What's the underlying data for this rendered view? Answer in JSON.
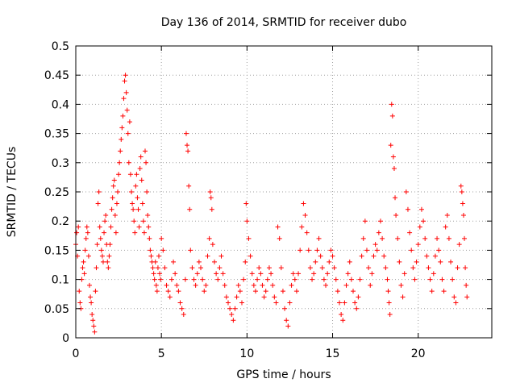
{
  "chart_data": {
    "type": "scatter",
    "title": "Day 136 of 2014, SRMTID for receiver dubo",
    "xlabel": "GPS time / hours",
    "ylabel": "SRMTID / TECUs",
    "xlim": [
      0,
      24.3
    ],
    "ylim": [
      0,
      0.5
    ],
    "xticks": [
      0,
      5,
      10,
      15,
      20
    ],
    "xtick_labels": [
      "0",
      "5",
      "10",
      "15",
      "20"
    ],
    "yticks": [
      0,
      0.05,
      0.1,
      0.15,
      0.2,
      0.25,
      0.3,
      0.35,
      0.4,
      0.45,
      0.5
    ],
    "ytick_labels": [
      "0",
      "0.05",
      "0.1",
      "0.15",
      "0.2",
      "0.25",
      "0.3",
      "0.35",
      "0.4",
      "0.45",
      "0.5"
    ],
    "grid": true,
    "marker": "plus",
    "marker_color": "#ff0000",
    "series": [
      {
        "name": "SRMTID",
        "points": [
          [
            0.0,
            0.16
          ],
          [
            0.05,
            0.18
          ],
          [
            0.1,
            0.14
          ],
          [
            0.15,
            0.19
          ],
          [
            0.2,
            0.08
          ],
          [
            0.25,
            0.06
          ],
          [
            0.3,
            0.05
          ],
          [
            0.35,
            0.1
          ],
          [
            0.4,
            0.12
          ],
          [
            0.45,
            0.13
          ],
          [
            0.5,
            0.11
          ],
          [
            0.55,
            0.15
          ],
          [
            0.6,
            0.17
          ],
          [
            0.65,
            0.19
          ],
          [
            0.7,
            0.18
          ],
          [
            0.75,
            0.14
          ],
          [
            0.8,
            0.09
          ],
          [
            0.85,
            0.07
          ],
          [
            0.9,
            0.06
          ],
          [
            0.95,
            0.04
          ],
          [
            1.0,
            0.03
          ],
          [
            1.05,
            0.02
          ],
          [
            1.1,
            0.01
          ],
          [
            1.15,
            0.08
          ],
          [
            1.2,
            0.12
          ],
          [
            1.25,
            0.16
          ],
          [
            1.3,
            0.23
          ],
          [
            1.35,
            0.25
          ],
          [
            1.4,
            0.19
          ],
          [
            1.45,
            0.17
          ],
          [
            1.5,
            0.15
          ],
          [
            1.55,
            0.14
          ],
          [
            1.6,
            0.13
          ],
          [
            1.65,
            0.18
          ],
          [
            1.7,
            0.2
          ],
          [
            1.75,
            0.21
          ],
          [
            1.8,
            0.16
          ],
          [
            1.85,
            0.13
          ],
          [
            1.9,
            0.12
          ],
          [
            1.95,
            0.14
          ],
          [
            2.0,
            0.16
          ],
          [
            2.05,
            0.19
          ],
          [
            2.1,
            0.22
          ],
          [
            2.15,
            0.24
          ],
          [
            2.2,
            0.26
          ],
          [
            2.25,
            0.27
          ],
          [
            2.3,
            0.21
          ],
          [
            2.35,
            0.18
          ],
          [
            2.4,
            0.23
          ],
          [
            2.45,
            0.25
          ],
          [
            2.5,
            0.28
          ],
          [
            2.55,
            0.3
          ],
          [
            2.6,
            0.32
          ],
          [
            2.65,
            0.34
          ],
          [
            2.7,
            0.36
          ],
          [
            2.75,
            0.38
          ],
          [
            2.8,
            0.41
          ],
          [
            2.85,
            0.44
          ],
          [
            2.9,
            0.45
          ],
          [
            2.95,
            0.42
          ],
          [
            3.0,
            0.39
          ],
          [
            3.05,
            0.35
          ],
          [
            3.1,
            0.3
          ],
          [
            3.15,
            0.37
          ],
          [
            3.2,
            0.28
          ],
          [
            3.25,
            0.25
          ],
          [
            3.3,
            0.23
          ],
          [
            3.35,
            0.22
          ],
          [
            3.4,
            0.2
          ],
          [
            3.45,
            0.18
          ],
          [
            3.5,
            0.26
          ],
          [
            3.55,
            0.28
          ],
          [
            3.6,
            0.24
          ],
          [
            3.65,
            0.22
          ],
          [
            3.7,
            0.19
          ],
          [
            3.75,
            0.29
          ],
          [
            3.8,
            0.31
          ],
          [
            3.85,
            0.27
          ],
          [
            3.9,
            0.23
          ],
          [
            3.95,
            0.2
          ],
          [
            4.0,
            0.18
          ],
          [
            4.05,
            0.32
          ],
          [
            4.1,
            0.3
          ],
          [
            4.15,
            0.25
          ],
          [
            4.2,
            0.21
          ],
          [
            4.25,
            0.19
          ],
          [
            4.3,
            0.17
          ],
          [
            4.35,
            0.15
          ],
          [
            4.4,
            0.14
          ],
          [
            4.45,
            0.13
          ],
          [
            4.5,
            0.12
          ],
          [
            4.55,
            0.11
          ],
          [
            4.6,
            0.1
          ],
          [
            4.65,
            0.13
          ],
          [
            4.7,
            0.09
          ],
          [
            4.75,
            0.08
          ],
          [
            4.8,
            0.12
          ],
          [
            4.85,
            0.14
          ],
          [
            4.9,
            0.11
          ],
          [
            4.95,
            0.1
          ],
          [
            5.0,
            0.17
          ],
          [
            5.1,
            0.15
          ],
          [
            5.2,
            0.12
          ],
          [
            5.3,
            0.09
          ],
          [
            5.4,
            0.08
          ],
          [
            5.5,
            0.07
          ],
          [
            5.6,
            0.1
          ],
          [
            5.7,
            0.13
          ],
          [
            5.8,
            0.11
          ],
          [
            5.9,
            0.09
          ],
          [
            6.0,
            0.08
          ],
          [
            6.1,
            0.06
          ],
          [
            6.2,
            0.05
          ],
          [
            6.3,
            0.04
          ],
          [
            6.4,
            0.1
          ],
          [
            6.45,
            0.35
          ],
          [
            6.5,
            0.33
          ],
          [
            6.55,
            0.32
          ],
          [
            6.6,
            0.26
          ],
          [
            6.65,
            0.22
          ],
          [
            6.7,
            0.15
          ],
          [
            6.8,
            0.12
          ],
          [
            6.9,
            0.1
          ],
          [
            7.0,
            0.09
          ],
          [
            7.1,
            0.11
          ],
          [
            7.2,
            0.13
          ],
          [
            7.3,
            0.12
          ],
          [
            7.4,
            0.1
          ],
          [
            7.5,
            0.08
          ],
          [
            7.6,
            0.09
          ],
          [
            7.7,
            0.14
          ],
          [
            7.8,
            0.17
          ],
          [
            7.85,
            0.25
          ],
          [
            7.9,
            0.24
          ],
          [
            7.95,
            0.22
          ],
          [
            8.0,
            0.16
          ],
          [
            8.1,
            0.13
          ],
          [
            8.2,
            0.11
          ],
          [
            8.3,
            0.1
          ],
          [
            8.4,
            0.12
          ],
          [
            8.5,
            0.14
          ],
          [
            8.6,
            0.11
          ],
          [
            8.7,
            0.09
          ],
          [
            8.8,
            0.07
          ],
          [
            8.9,
            0.06
          ],
          [
            9.0,
            0.05
          ],
          [
            9.1,
            0.04
          ],
          [
            9.2,
            0.03
          ],
          [
            9.3,
            0.05
          ],
          [
            9.4,
            0.07
          ],
          [
            9.5,
            0.09
          ],
          [
            9.6,
            0.08
          ],
          [
            9.7,
            0.06
          ],
          [
            9.8,
            0.1
          ],
          [
            9.9,
            0.13
          ],
          [
            9.95,
            0.23
          ],
          [
            10.0,
            0.2
          ],
          [
            10.1,
            0.17
          ],
          [
            10.2,
            0.14
          ],
          [
            10.3,
            0.11
          ],
          [
            10.4,
            0.09
          ],
          [
            10.5,
            0.08
          ],
          [
            10.6,
            0.1
          ],
          [
            10.7,
            0.12
          ],
          [
            10.8,
            0.11
          ],
          [
            10.9,
            0.09
          ],
          [
            11.0,
            0.07
          ],
          [
            11.1,
            0.08
          ],
          [
            11.2,
            0.1
          ],
          [
            11.3,
            0.12
          ],
          [
            11.4,
            0.11
          ],
          [
            11.5,
            0.09
          ],
          [
            11.6,
            0.07
          ],
          [
            11.7,
            0.06
          ],
          [
            11.8,
            0.19
          ],
          [
            11.9,
            0.17
          ],
          [
            12.0,
            0.12
          ],
          [
            12.1,
            0.08
          ],
          [
            12.2,
            0.05
          ],
          [
            12.3,
            0.03
          ],
          [
            12.4,
            0.02
          ],
          [
            12.5,
            0.06
          ],
          [
            12.6,
            0.09
          ],
          [
            12.7,
            0.11
          ],
          [
            12.8,
            0.1
          ],
          [
            12.9,
            0.08
          ],
          [
            13.0,
            0.11
          ],
          [
            13.1,
            0.15
          ],
          [
            13.2,
            0.19
          ],
          [
            13.3,
            0.23
          ],
          [
            13.4,
            0.21
          ],
          [
            13.5,
            0.18
          ],
          [
            13.6,
            0.15
          ],
          [
            13.7,
            0.12
          ],
          [
            13.8,
            0.1
          ],
          [
            13.9,
            0.11
          ],
          [
            14.0,
            0.13
          ],
          [
            14.1,
            0.15
          ],
          [
            14.2,
            0.17
          ],
          [
            14.3,
            0.14
          ],
          [
            14.4,
            0.12
          ],
          [
            14.5,
            0.1
          ],
          [
            14.6,
            0.09
          ],
          [
            14.7,
            0.11
          ],
          [
            14.8,
            0.13
          ],
          [
            14.9,
            0.15
          ],
          [
            15.0,
            0.14
          ],
          [
            15.1,
            0.12
          ],
          [
            15.2,
            0.1
          ],
          [
            15.3,
            0.08
          ],
          [
            15.4,
            0.06
          ],
          [
            15.5,
            0.04
          ],
          [
            15.6,
            0.03
          ],
          [
            15.7,
            0.06
          ],
          [
            15.8,
            0.09
          ],
          [
            15.9,
            0.11
          ],
          [
            16.0,
            0.13
          ],
          [
            16.1,
            0.1
          ],
          [
            16.2,
            0.08
          ],
          [
            16.3,
            0.06
          ],
          [
            16.4,
            0.05
          ],
          [
            16.5,
            0.07
          ],
          [
            16.6,
            0.1
          ],
          [
            16.7,
            0.14
          ],
          [
            16.8,
            0.17
          ],
          [
            16.9,
            0.2
          ],
          [
            17.0,
            0.15
          ],
          [
            17.1,
            0.12
          ],
          [
            17.2,
            0.09
          ],
          [
            17.3,
            0.11
          ],
          [
            17.4,
            0.14
          ],
          [
            17.5,
            0.16
          ],
          [
            17.6,
            0.15
          ],
          [
            17.7,
            0.18
          ],
          [
            17.8,
            0.2
          ],
          [
            17.9,
            0.17
          ],
          [
            18.0,
            0.14
          ],
          [
            18.1,
            0.12
          ],
          [
            18.2,
            0.1
          ],
          [
            18.25,
            0.08
          ],
          [
            18.3,
            0.06
          ],
          [
            18.35,
            0.04
          ],
          [
            18.4,
            0.33
          ],
          [
            18.45,
            0.4
          ],
          [
            18.5,
            0.38
          ],
          [
            18.55,
            0.31
          ],
          [
            18.6,
            0.29
          ],
          [
            18.65,
            0.24
          ],
          [
            18.7,
            0.21
          ],
          [
            18.8,
            0.17
          ],
          [
            18.9,
            0.13
          ],
          [
            19.0,
            0.09
          ],
          [
            19.1,
            0.07
          ],
          [
            19.2,
            0.11
          ],
          [
            19.3,
            0.25
          ],
          [
            19.4,
            0.22
          ],
          [
            19.5,
            0.18
          ],
          [
            19.6,
            0.15
          ],
          [
            19.7,
            0.12
          ],
          [
            19.8,
            0.1
          ],
          [
            19.9,
            0.13
          ],
          [
            20.0,
            0.16
          ],
          [
            20.1,
            0.19
          ],
          [
            20.2,
            0.22
          ],
          [
            20.3,
            0.2
          ],
          [
            20.4,
            0.17
          ],
          [
            20.5,
            0.14
          ],
          [
            20.6,
            0.12
          ],
          [
            20.7,
            0.1
          ],
          [
            20.8,
            0.08
          ],
          [
            20.9,
            0.11
          ],
          [
            21.0,
            0.14
          ],
          [
            21.1,
            0.17
          ],
          [
            21.2,
            0.15
          ],
          [
            21.3,
            0.13
          ],
          [
            21.4,
            0.1
          ],
          [
            21.5,
            0.08
          ],
          [
            21.6,
            0.19
          ],
          [
            21.7,
            0.21
          ],
          [
            21.8,
            0.17
          ],
          [
            21.9,
            0.13
          ],
          [
            22.0,
            0.1
          ],
          [
            22.1,
            0.07
          ],
          [
            22.2,
            0.06
          ],
          [
            22.3,
            0.12
          ],
          [
            22.4,
            0.16
          ],
          [
            22.5,
            0.26
          ],
          [
            22.55,
            0.25
          ],
          [
            22.6,
            0.23
          ],
          [
            22.65,
            0.21
          ],
          [
            22.7,
            0.17
          ],
          [
            22.75,
            0.12
          ],
          [
            22.8,
            0.09
          ],
          [
            22.85,
            0.07
          ]
        ]
      }
    ]
  }
}
